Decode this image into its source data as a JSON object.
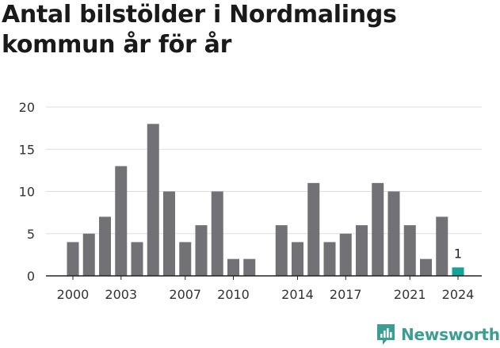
{
  "title": "Antal bilstölder i Nordmalings kommun år för år",
  "brand": {
    "name": "Newsworthy",
    "color": "#3a9e92",
    "icon": "newsworthy-logo-icon"
  },
  "colors": {
    "bar": "#727176",
    "highlight": "#12a597",
    "grid": "#dddddd",
    "axis": "#222222"
  },
  "chart_data": {
    "type": "bar",
    "title": "Antal bilstölder i Nordmalings kommun år för år",
    "xlabel": "",
    "ylabel": "",
    "categories": [
      "2000",
      "2001",
      "2002",
      "2003",
      "2004",
      "2005",
      "2006",
      "2007",
      "2008",
      "2009",
      "2010",
      "2011",
      "2012",
      "2013",
      "2014",
      "2015",
      "2016",
      "2017",
      "2018",
      "2019",
      "2020",
      "2021",
      "2022",
      "2023",
      "2024"
    ],
    "values": [
      4,
      5,
      7,
      13,
      4,
      18,
      10,
      4,
      6,
      10,
      2,
      2,
      null,
      6,
      4,
      11,
      4,
      5,
      6,
      11,
      10,
      6,
      2,
      7,
      1
    ],
    "x_tick_labels": [
      "2000",
      "2003",
      "2007",
      "2010",
      "2014",
      "2017",
      "2021",
      "2024"
    ],
    "y_ticks": [
      0,
      5,
      10,
      15,
      20
    ],
    "ylim": [
      0,
      20
    ],
    "grid": true,
    "legend": "none",
    "highlight_category": "2024",
    "data_labels": [
      {
        "category": "2024",
        "text": "1"
      }
    ]
  }
}
